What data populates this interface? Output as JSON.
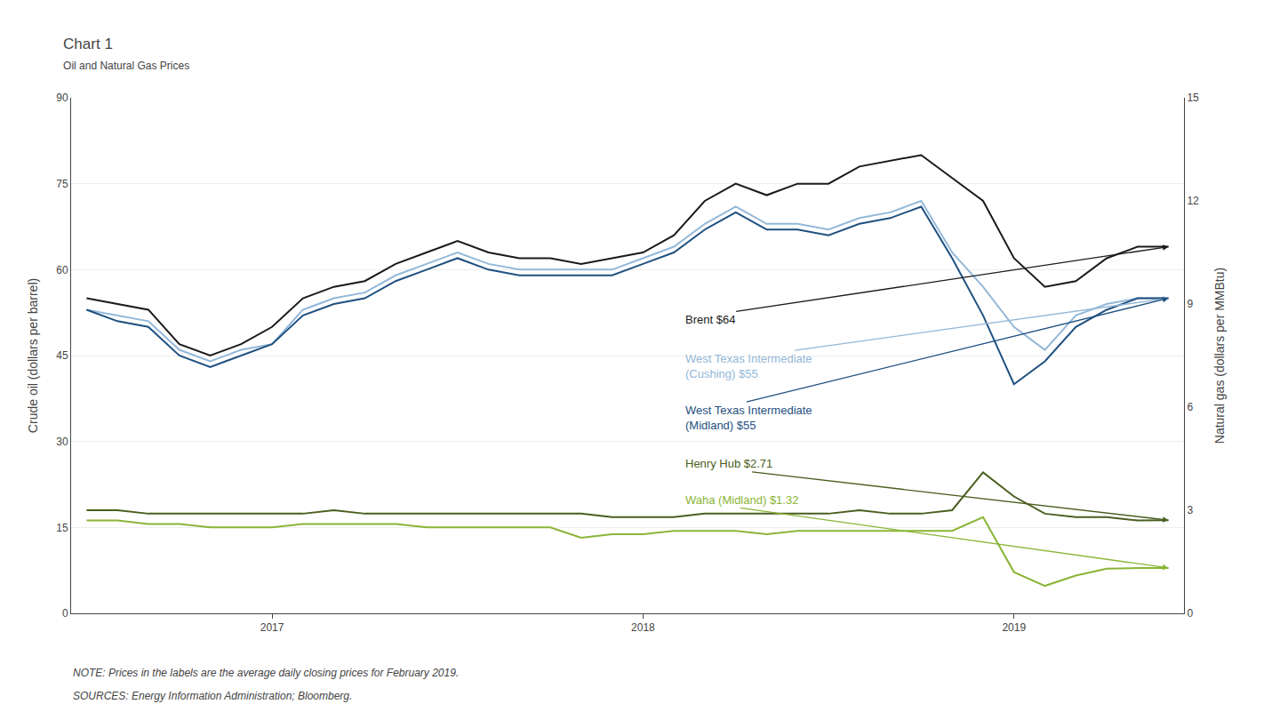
{
  "chart_data": {
    "type": "line",
    "title": "Chart 1",
    "subtitle": "Oil and Natural Gas Prices",
    "ylabel": "Crude oil (dollars per barrel)",
    "y2label": "Natural gas (dollars per MMBtu)",
    "footnotes": [
      "NOTE: Prices in the labels are the average daily closing prices for February 2019.",
      "SOURCES: Energy Information Administration; Bloomberg."
    ],
    "categories": [
      null,
      null,
      null,
      null,
      null,
      null,
      "2017",
      null,
      null,
      null,
      null,
      null,
      null,
      null,
      null,
      null,
      null,
      null,
      "2018",
      null,
      null,
      null,
      null,
      null,
      null,
      null,
      null,
      null,
      null,
      null,
      "2019",
      null,
      null,
      null,
      null,
      null
    ],
    "series": [
      {
        "name": "Brent $64",
        "color": "#1a1a1a",
        "values": [
          55,
          54,
          53,
          47,
          45,
          47,
          50,
          55,
          57,
          58,
          61,
          63,
          65,
          63,
          62,
          62,
          61,
          62,
          63,
          66,
          72,
          75,
          73,
          75,
          75,
          78,
          79,
          80,
          76,
          72,
          62,
          57,
          58,
          62,
          64,
          64
        ]
      },
      {
        "name": "West Texas Intermediate\n(Cushing) $55",
        "color": "#93b8d8",
        "values": [
          53,
          52,
          51,
          46,
          44,
          46,
          47,
          53,
          55,
          56,
          59,
          61,
          63,
          61,
          60,
          60,
          60,
          60,
          62,
          64,
          68,
          71,
          68,
          68,
          67,
          69,
          70,
          72,
          63,
          57,
          50,
          46,
          52,
          54,
          55,
          55
        ]
      },
      {
        "name": "West Texas Intermediate\n(Midland) $55",
        "color": "#1f5080",
        "values": [
          53,
          51,
          50,
          45,
          43,
          45,
          47,
          52,
          54,
          55,
          58,
          60,
          62,
          60,
          59,
          59,
          59,
          59,
          61,
          63,
          67,
          70,
          67,
          67,
          66,
          68,
          69,
          71,
          62,
          52,
          40,
          44,
          50,
          53,
          55,
          55
        ]
      },
      {
        "name": "Henry Hub $2.71",
        "color": "#4a5e20",
        "axis": "y2",
        "values": [
          3.0,
          3.0,
          2.9,
          2.9,
          2.9,
          2.9,
          2.9,
          2.9,
          3.0,
          2.9,
          2.9,
          2.9,
          2.9,
          2.9,
          2.9,
          2.9,
          2.9,
          2.8,
          2.8,
          2.8,
          2.9,
          2.9,
          2.9,
          2.9,
          2.9,
          3.0,
          2.9,
          2.9,
          3.0,
          4.1,
          3.4,
          2.9,
          2.8,
          2.8,
          2.7,
          2.71
        ]
      },
      {
        "name": "Waha (Midland) $1.32",
        "color": "#8ab536",
        "axis": "y2",
        "values": [
          2.7,
          2.7,
          2.6,
          2.6,
          2.5,
          2.5,
          2.5,
          2.6,
          2.6,
          2.6,
          2.6,
          2.5,
          2.5,
          2.5,
          2.5,
          2.5,
          2.2,
          2.3,
          2.3,
          2.4,
          2.4,
          2.4,
          2.3,
          2.4,
          2.4,
          2.4,
          2.4,
          2.4,
          2.4,
          2.8,
          1.2,
          0.8,
          1.1,
          1.3,
          1.32,
          1.32
        ]
      }
    ],
    "ylim": [
      0,
      90
    ],
    "yticks": [
      0,
      15,
      30,
      45,
      60,
      75,
      90
    ],
    "y2lim": [
      0,
      15
    ],
    "y2ticks": [
      0,
      3,
      6,
      9,
      12,
      15
    ],
    "grid": true
  }
}
